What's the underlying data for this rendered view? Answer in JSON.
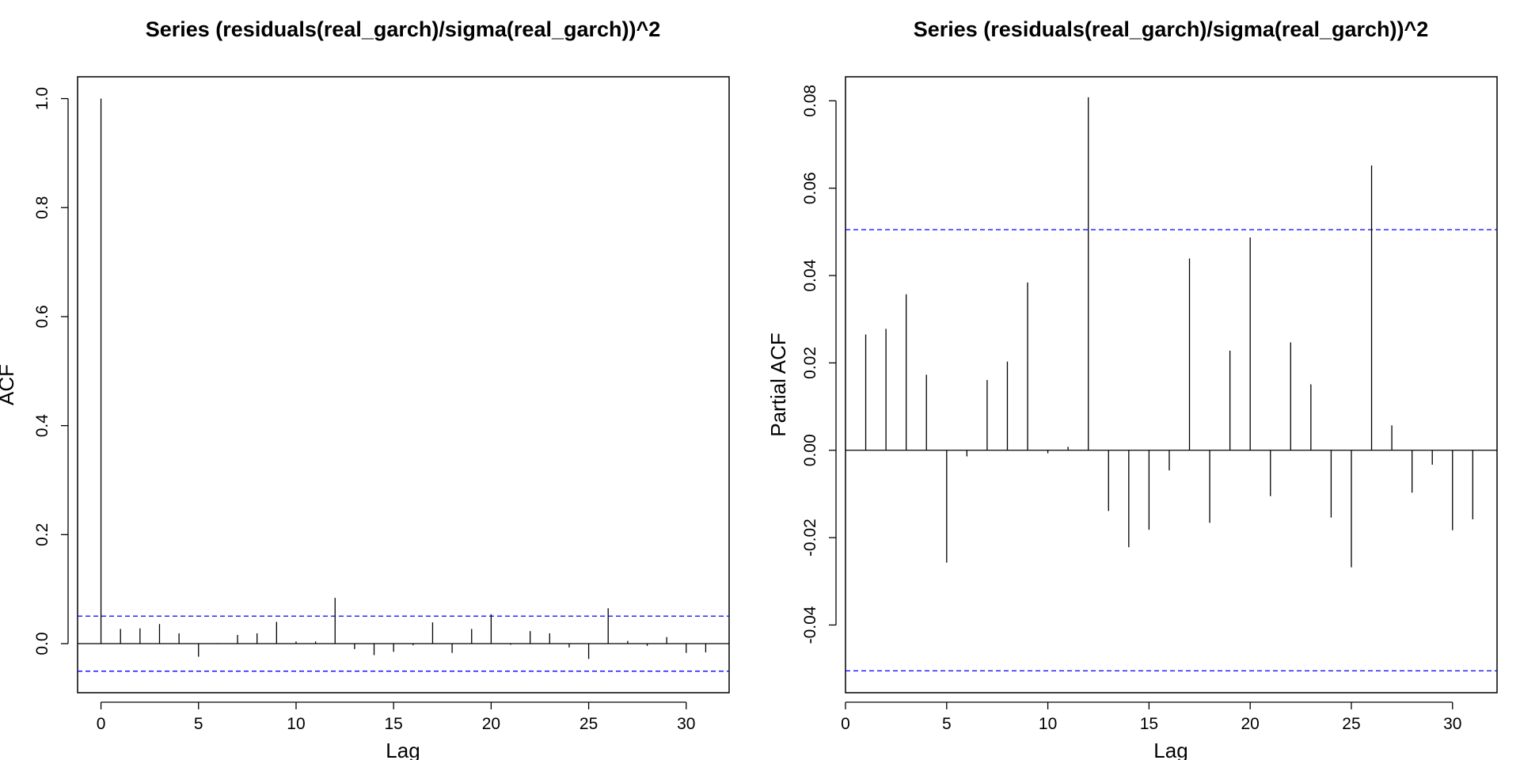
{
  "chart_data": [
    {
      "type": "bar",
      "title": "Series  (residuals(real_garch)/sigma(real_garch))^2",
      "xlabel": "Lag",
      "ylabel": "ACF",
      "xlim": [
        -1.2,
        32.2
      ],
      "ylim": [
        -0.09,
        1.04
      ],
      "xticks": [
        0,
        5,
        10,
        15,
        20,
        25,
        30
      ],
      "xtick_labels": [
        "0",
        "5",
        "10",
        "15",
        "20",
        "25",
        "30"
      ],
      "yticks": [
        0.0,
        0.2,
        0.4,
        0.6,
        0.8,
        1.0
      ],
      "ytick_labels": [
        "0.0",
        "0.2",
        "0.4",
        "0.6",
        "0.8",
        "1.0"
      ],
      "x": [
        0,
        1,
        2,
        3,
        4,
        5,
        6,
        7,
        8,
        9,
        10,
        11,
        12,
        13,
        14,
        15,
        16,
        17,
        18,
        19,
        20,
        21,
        22,
        23,
        24,
        25,
        26,
        27,
        28,
        29,
        30,
        31
      ],
      "values": [
        1.0,
        0.027,
        0.028,
        0.036,
        0.019,
        -0.024,
        0.001,
        0.016,
        0.019,
        0.04,
        0.004,
        0.004,
        0.084,
        -0.01,
        -0.021,
        -0.015,
        -0.003,
        0.039,
        -0.017,
        0.027,
        0.054,
        -0.002,
        0.023,
        0.019,
        -0.007,
        -0.028,
        0.065,
        0.005,
        -0.004,
        0.012,
        -0.017,
        -0.016
      ],
      "confidence_band": [
        -0.0505,
        0.0505
      ],
      "colors": {
        "bars": "#000000",
        "confidence": "#0000ff",
        "axes": "#000000"
      },
      "grid": false
    },
    {
      "type": "bar",
      "title": "Series  (residuals(real_garch)/sigma(real_garch))^2",
      "xlabel": "Lag",
      "ylabel": "Partial ACF",
      "xlim": [
        0,
        32.2
      ],
      "ylim": [
        -0.0555,
        0.0855
      ],
      "xticks": [
        0,
        5,
        10,
        15,
        20,
        25,
        30
      ],
      "xtick_labels": [
        "0",
        "5",
        "10",
        "15",
        "20",
        "25",
        "30"
      ],
      "yticks": [
        -0.04,
        -0.02,
        0.0,
        0.02,
        0.04,
        0.06,
        0.08
      ],
      "ytick_labels": [
        "-0.04",
        "-0.02",
        "0.00",
        "0.02",
        "0.04",
        "0.06",
        "0.08"
      ],
      "x": [
        1,
        2,
        3,
        4,
        5,
        6,
        7,
        8,
        9,
        10,
        11,
        12,
        13,
        14,
        15,
        16,
        17,
        18,
        19,
        20,
        21,
        22,
        23,
        24,
        25,
        26,
        27,
        28,
        29,
        30,
        31
      ],
      "values": [
        0.0265,
        0.0278,
        0.0357,
        0.0173,
        -0.0257,
        -0.0014,
        0.0161,
        0.0203,
        0.0384,
        -0.0007,
        0.0008,
        0.0808,
        -0.0139,
        -0.0222,
        -0.0182,
        -0.0046,
        0.0439,
        -0.0166,
        0.0228,
        0.0487,
        -0.0105,
        0.0247,
        0.0151,
        -0.0154,
        -0.0268,
        0.0652,
        0.0057,
        -0.0097,
        -0.0033,
        -0.0183,
        -0.0158
      ],
      "confidence_band": [
        -0.0505,
        0.0505
      ],
      "colors": {
        "bars": "#000000",
        "confidence": "#0000ff",
        "axes": "#000000"
      },
      "grid": false
    }
  ]
}
